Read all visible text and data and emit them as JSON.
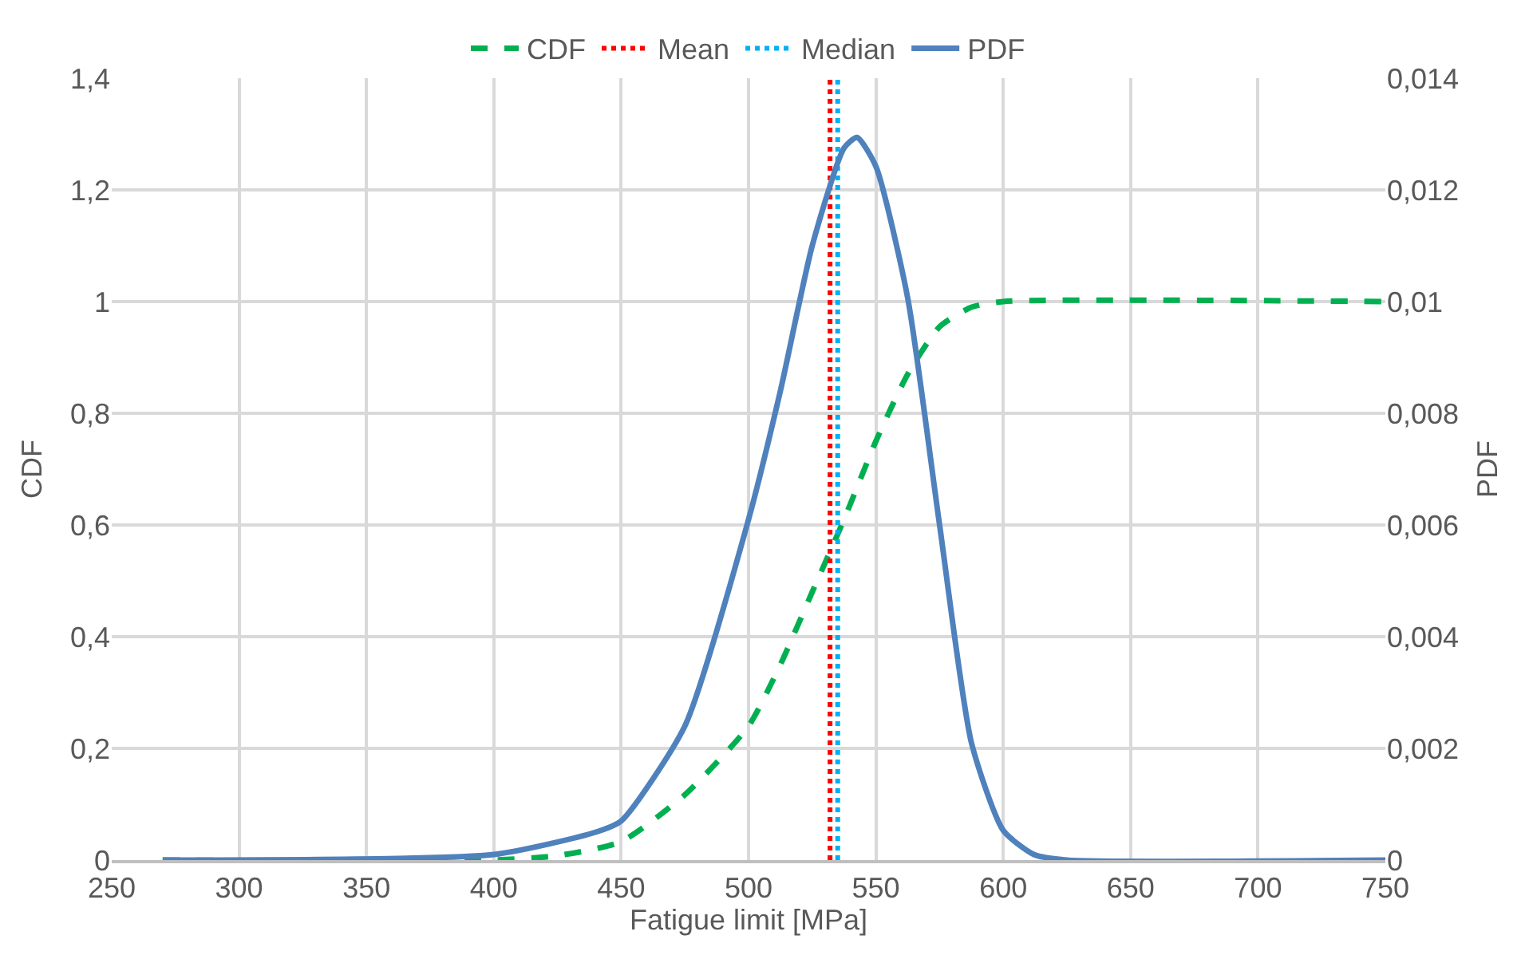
{
  "chart_data": {
    "type": "line",
    "xlabel": "Fatigue limit [MPa]",
    "ylabel": "CDF",
    "y2label": "PDF",
    "xlim": [
      250,
      750
    ],
    "xticks": [
      250,
      300,
      350,
      400,
      450,
      500,
      550,
      600,
      650,
      700,
      750
    ],
    "ylim": [
      0,
      1.4
    ],
    "yticks": [
      0,
      {
        "value": 0.2,
        "label": "0,2"
      },
      {
        "value": 0.4,
        "label": "0,4"
      },
      {
        "value": 0.6,
        "label": "0,6"
      },
      {
        "value": 0.8,
        "label": "0,8"
      },
      1,
      {
        "value": 1.2,
        "label": "1,2"
      },
      {
        "value": 1.4,
        "label": "1,4"
      }
    ],
    "y2lim": [
      0,
      0.014
    ],
    "y2ticks": [
      0,
      {
        "value": 0.002,
        "label": "0,002"
      },
      {
        "value": 0.004,
        "label": "0,004"
      },
      {
        "value": 0.006,
        "label": "0,006"
      },
      {
        "value": 0.008,
        "label": "0,008"
      },
      {
        "value": 0.01,
        "label": "0,01"
      },
      {
        "value": 0.012,
        "label": "0,012"
      },
      {
        "value": 0.014,
        "label": "0,014"
      }
    ],
    "grid": true,
    "legend": "top",
    "marker": "none",
    "series": [
      {
        "name": "CDF",
        "color": "#00b050",
        "line_style": "dashed",
        "x": [
          270,
          400,
          425,
          450,
          475,
          500,
          512.5,
          525,
          537.5,
          550,
          562.5,
          575,
          587.5,
          600,
          750
        ],
        "values": [
          0,
          0,
          0.008,
          0.033,
          0.117,
          0.24,
          0.35,
          0.48,
          0.61,
          0.75,
          0.87,
          0.955,
          0.99,
          1,
          1
        ]
      },
      {
        "name": "Mean",
        "color": "#ff0000",
        "line_style": "dotted",
        "x": [
          532,
          532
        ],
        "values": [
          0,
          1.4
        ]
      },
      {
        "name": "Median",
        "color": "#00b0f0",
        "line_style": "dotted",
        "x": [
          535,
          535
        ],
        "values": [
          0,
          1.4
        ]
      },
      {
        "name": "PDF",
        "color": "#4f81bd",
        "line_style": "solid",
        "axis": "y2",
        "x": [
          270,
          400,
          440,
          450,
          475,
          500,
          512.5,
          525,
          537.5,
          542.6,
          550,
          562.5,
          575,
          587.5,
          600,
          612,
          625,
          750
        ],
        "values": [
          0,
          0.0001,
          0.0005,
          0.0007,
          0.0024,
          0.0061,
          0.0084,
          0.011,
          0.01275,
          0.01294,
          0.01242,
          0.01006,
          0.006,
          0.0021,
          0.00053,
          0.0001,
          0,
          0
        ]
      }
    ]
  }
}
